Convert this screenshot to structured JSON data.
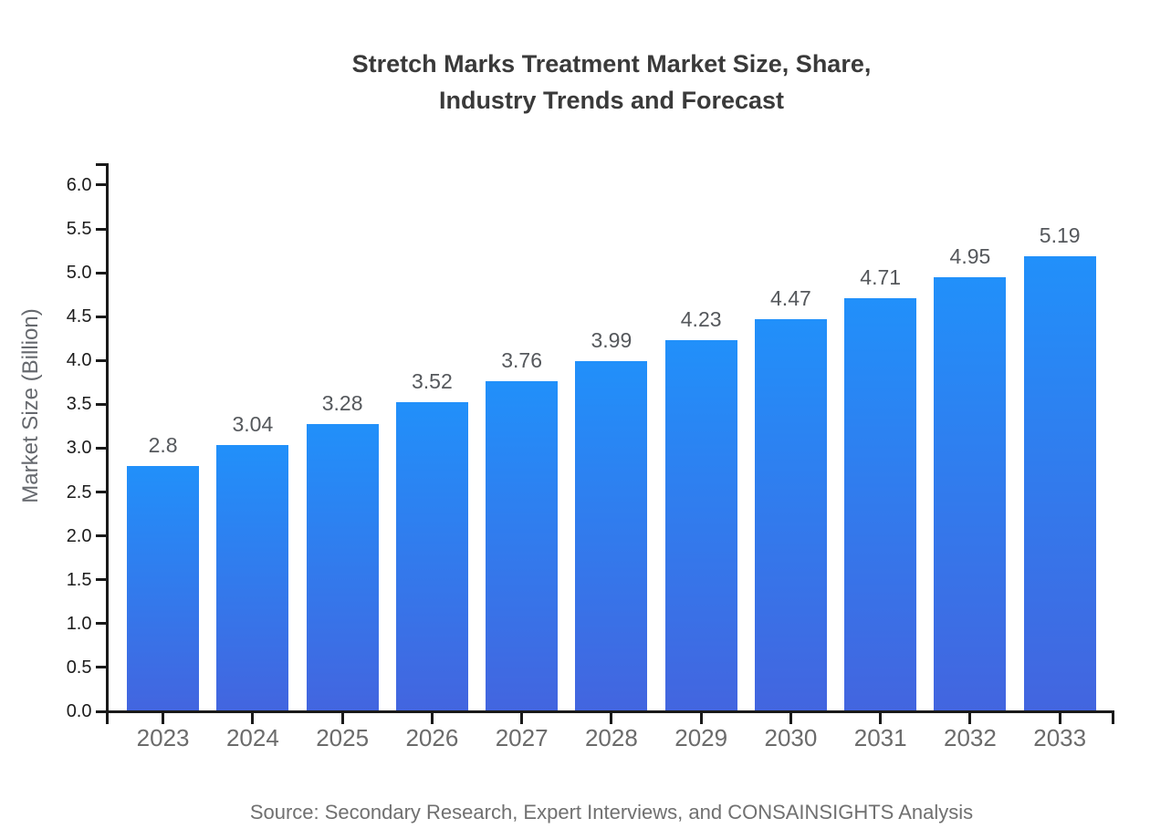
{
  "figure": {
    "title": "Stretch Marks Treatment Market Size, Share,\nIndustry Trends and Forecast"
  },
  "chart_data": {
    "type": "bar",
    "title": "Stretch Marks Treatment Market Size, Share, Industry Trends and Forecast",
    "categories": [
      "2023",
      "2024",
      "2025",
      "2026",
      "2027",
      "2028",
      "2029",
      "2030",
      "2031",
      "2032",
      "2033"
    ],
    "values": [
      2.8,
      3.04,
      3.28,
      3.52,
      3.76,
      3.99,
      4.23,
      4.47,
      4.71,
      4.95,
      5.19
    ],
    "data_labels": [
      "2.8",
      "3.04",
      "3.28",
      "3.52",
      "3.76",
      "3.99",
      "4.23",
      "4.47",
      "4.71",
      "4.95",
      "5.19"
    ],
    "xlabel": "",
    "ylabel": "Market Size (Billion)",
    "ylim": [
      0.0,
      6.0
    ],
    "ytick_step": 0.5,
    "ytick_labels": [
      "0.0",
      "0.5",
      "1.0",
      "1.5",
      "2.0",
      "2.5",
      "3.0",
      "3.5",
      "4.0",
      "4.5",
      "5.0",
      "5.5",
      "6.0"
    ],
    "grid": false,
    "legend": false,
    "source": "Source: Secondary Research, Expert Interviews, and CONSAINSIGHTS Analysis",
    "colors": {
      "title_color": "#3a3a3a",
      "axis_color": "#1a1a1a",
      "bar_top": "#2190fa",
      "bar_bottom": "#4365df",
      "ytick_label_color": "#1c1c1c",
      "xtick_label_color": "#6b6b6b",
      "data_label_color": "#55585c",
      "ylabel_color": "#66696e",
      "source_color": "#707070"
    }
  }
}
